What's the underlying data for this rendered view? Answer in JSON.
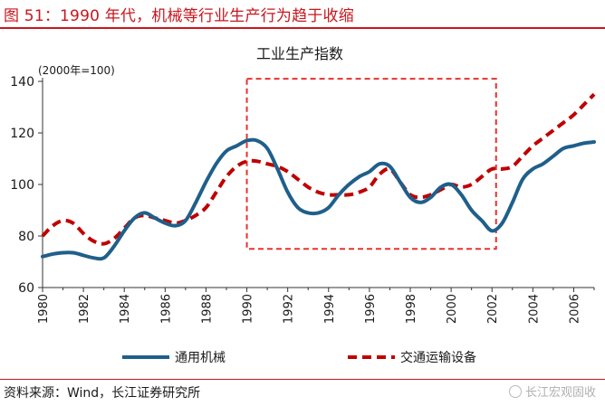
{
  "figure_title": "图 51：1990 年代，机械等行业生产行为趋于收缩",
  "source": "资料来源：Wind，长江证券研究所",
  "watermark": "长江宏观固收",
  "colors": {
    "accent": "#c8161d",
    "series_machinery": "#1f5f8b",
    "series_transport": "#c00000",
    "highlight_box": "#e8322f"
  },
  "chart_data": {
    "type": "line",
    "title": "工业生产指数",
    "unit_note": "(2000年=100)",
    "xlabel": "",
    "ylabel": "",
    "xlim": [
      1980,
      2007
    ],
    "ylim": [
      60,
      140
    ],
    "x_ticks": [
      "1980",
      "1982",
      "1984",
      "1986",
      "1988",
      "1990",
      "1992",
      "1994",
      "1996",
      "1998",
      "2000",
      "2002",
      "2004",
      "2006"
    ],
    "y_ticks": [
      "60",
      "80",
      "100",
      "120",
      "140"
    ],
    "grid": false,
    "legend_position": "bottom",
    "highlight_range": {
      "x": [
        1990,
        2002.2
      ],
      "y": [
        75,
        141
      ]
    },
    "series": [
      {
        "name": "通用机械",
        "style": "solid",
        "color": "#1f5f8b",
        "points": [
          [
            1980,
            72
          ],
          [
            1980.5,
            73
          ],
          [
            1981,
            73.5
          ],
          [
            1981.5,
            73.5
          ],
          [
            1982,
            72.5
          ],
          [
            1982.5,
            71.5
          ],
          [
            1983,
            71.5
          ],
          [
            1983.5,
            76
          ],
          [
            1984,
            82
          ],
          [
            1984.5,
            87
          ],
          [
            1985,
            89
          ],
          [
            1985.5,
            87
          ],
          [
            1986,
            85
          ],
          [
            1986.5,
            84
          ],
          [
            1987,
            86
          ],
          [
            1987.5,
            93
          ],
          [
            1988,
            101
          ],
          [
            1988.5,
            108
          ],
          [
            1989,
            113
          ],
          [
            1989.5,
            115
          ],
          [
            1990,
            117
          ],
          [
            1990.5,
            117
          ],
          [
            1991,
            114
          ],
          [
            1991.5,
            106
          ],
          [
            1992,
            97
          ],
          [
            1992.5,
            91
          ],
          [
            1993,
            89
          ],
          [
            1993.5,
            89
          ],
          [
            1994,
            91
          ],
          [
            1994.5,
            96
          ],
          [
            1995,
            100
          ],
          [
            1995.5,
            103
          ],
          [
            1996,
            105
          ],
          [
            1996.5,
            108
          ],
          [
            1997,
            107
          ],
          [
            1997.5,
            101
          ],
          [
            1998,
            95
          ],
          [
            1998.5,
            93
          ],
          [
            1999,
            95
          ],
          [
            1999.5,
            99
          ],
          [
            2000,
            100
          ],
          [
            2000.5,
            96
          ],
          [
            2001,
            90
          ],
          [
            2001.5,
            86
          ],
          [
            2002,
            82
          ],
          [
            2002.5,
            85
          ],
          [
            2003,
            93
          ],
          [
            2003.5,
            102
          ],
          [
            2004,
            106
          ],
          [
            2004.5,
            108
          ],
          [
            2005,
            111
          ],
          [
            2005.5,
            114
          ],
          [
            2006,
            115
          ],
          [
            2006.5,
            116
          ],
          [
            2007,
            116.5
          ]
        ]
      },
      {
        "name": "交通运输设备",
        "style": "dashed",
        "color": "#c00000",
        "points": [
          [
            1980,
            80
          ],
          [
            1980.5,
            84
          ],
          [
            1981,
            86
          ],
          [
            1981.5,
            85
          ],
          [
            1982,
            81
          ],
          [
            1982.5,
            78
          ],
          [
            1983,
            77
          ],
          [
            1983.5,
            79
          ],
          [
            1984,
            83
          ],
          [
            1984.5,
            87
          ],
          [
            1985,
            88
          ],
          [
            1985.5,
            87
          ],
          [
            1986,
            86
          ],
          [
            1986.5,
            85
          ],
          [
            1987,
            86
          ],
          [
            1987.5,
            88
          ],
          [
            1988,
            91
          ],
          [
            1988.5,
            97
          ],
          [
            1989,
            103
          ],
          [
            1989.5,
            107
          ],
          [
            1990,
            109
          ],
          [
            1990.5,
            109
          ],
          [
            1991,
            108
          ],
          [
            1991.5,
            107
          ],
          [
            1992,
            105
          ],
          [
            1992.5,
            102
          ],
          [
            1993,
            99
          ],
          [
            1993.5,
            97
          ],
          [
            1994,
            96
          ],
          [
            1994.5,
            96
          ],
          [
            1995,
            96
          ],
          [
            1995.5,
            97
          ],
          [
            1996,
            99
          ],
          [
            1996.5,
            104
          ],
          [
            1997,
            106
          ],
          [
            1997.5,
            101
          ],
          [
            1998,
            96
          ],
          [
            1998.5,
            95
          ],
          [
            1999,
            96
          ],
          [
            1999.5,
            98
          ],
          [
            2000,
            100
          ],
          [
            2000.5,
            99
          ],
          [
            2001,
            100
          ],
          [
            2001.5,
            103
          ],
          [
            2002,
            106
          ],
          [
            2002.5,
            106
          ],
          [
            2003,
            107
          ],
          [
            2003.5,
            111
          ],
          [
            2004,
            115
          ],
          [
            2004.5,
            118
          ],
          [
            2005,
            121
          ],
          [
            2005.5,
            124
          ],
          [
            2006,
            127
          ],
          [
            2006.5,
            131
          ],
          [
            2007,
            135
          ]
        ]
      }
    ]
  }
}
